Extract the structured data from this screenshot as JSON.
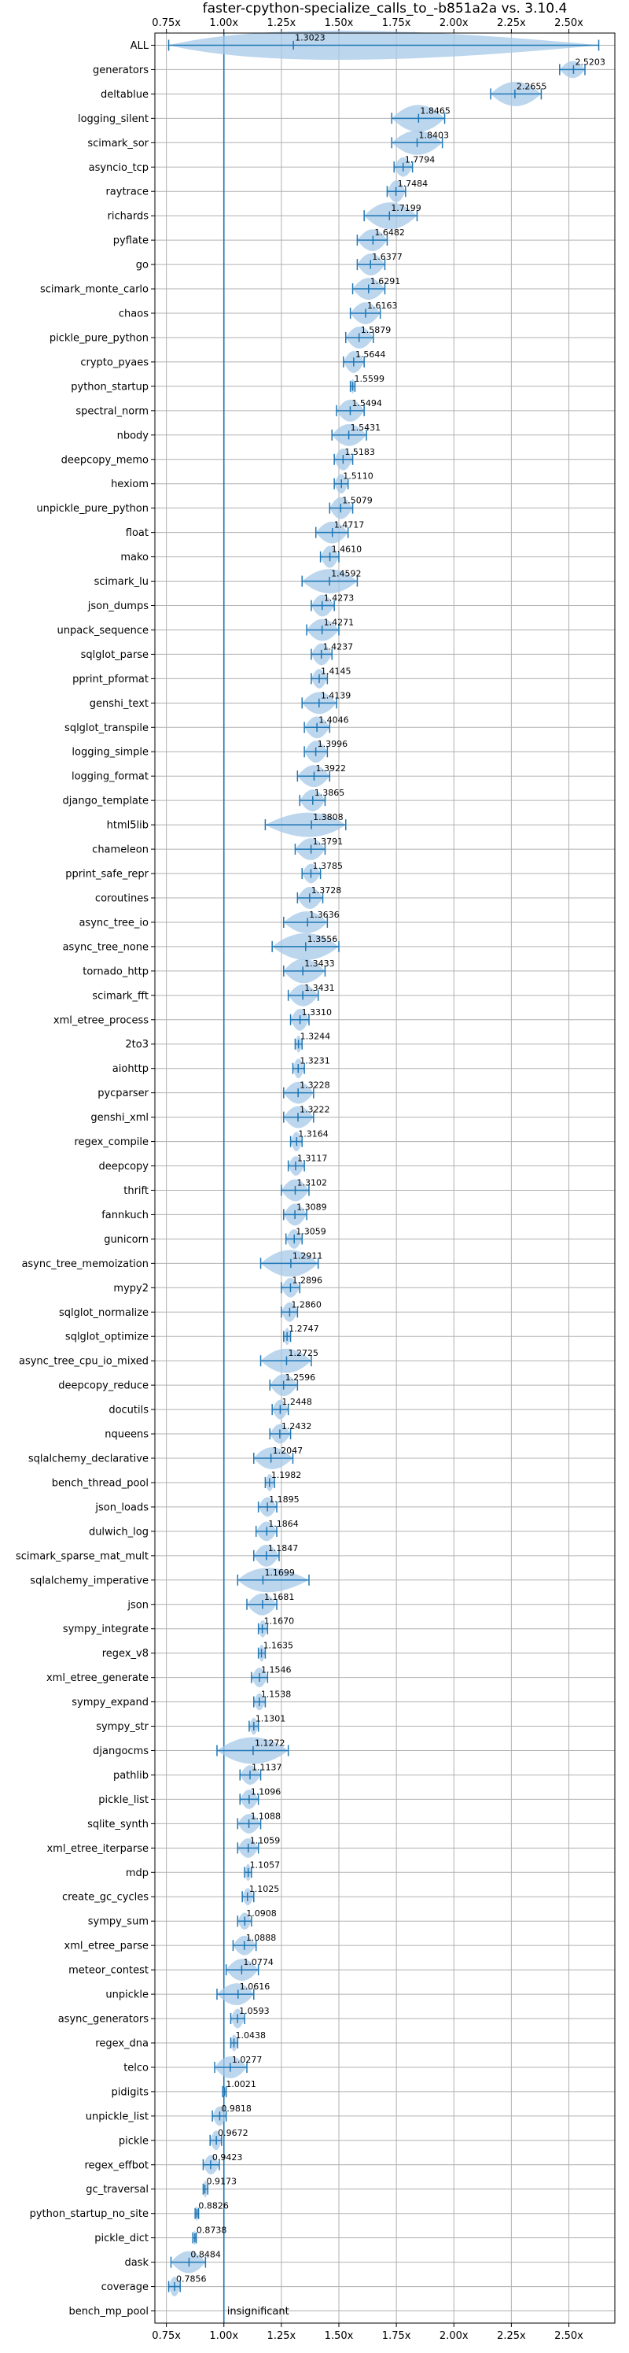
{
  "chart_data": {
    "type": "violin",
    "title": "faster-cpython-specialize_calls_to_-b851a2a vs. 3.10.4",
    "xlabel": "",
    "ylabel": "",
    "xlim": [
      0.7,
      2.7
    ],
    "xticks": [
      0.75,
      1.0,
      1.25,
      1.5,
      1.75,
      2.0,
      2.25,
      2.5
    ],
    "xtick_labels": [
      "0.75x",
      "1.00x",
      "1.25x",
      "1.50x",
      "1.75x",
      "2.00x",
      "2.25x",
      "2.50x"
    ],
    "reference_line": 1.0,
    "grid": true,
    "color": "#1f77b4",
    "fill_color": "#a6c8e8",
    "benchmarks": [
      {
        "name": "ALL",
        "value": 1.3023,
        "label": "1.3023",
        "lo": 0.76,
        "hi": 2.63,
        "width": 0.6
      },
      {
        "name": "generators",
        "value": 2.5203,
        "label": "2.5203",
        "lo": 2.46,
        "hi": 2.57,
        "width": 0.35
      },
      {
        "name": "deltablue",
        "value": 2.2655,
        "label": "2.2655",
        "lo": 2.16,
        "hi": 2.38,
        "width": 0.5
      },
      {
        "name": "logging_silent",
        "value": 1.8465,
        "label": "1.8465",
        "lo": 1.73,
        "hi": 1.96,
        "width": 0.55
      },
      {
        "name": "scimark_sor",
        "value": 1.8403,
        "label": "1.8403",
        "lo": 1.73,
        "hi": 1.95,
        "width": 0.5
      },
      {
        "name": "asyncio_tcp",
        "value": 1.7794,
        "label": "1.7794",
        "lo": 1.74,
        "hi": 1.82,
        "width": 0.4
      },
      {
        "name": "raytrace",
        "value": 1.7484,
        "label": "1.7484",
        "lo": 1.71,
        "hi": 1.79,
        "width": 0.45
      },
      {
        "name": "richards",
        "value": 1.7199,
        "label": "1.7199",
        "lo": 1.61,
        "hi": 1.84,
        "width": 0.55
      },
      {
        "name": "pyflate",
        "value": 1.6482,
        "label": "1.6482",
        "lo": 1.58,
        "hi": 1.71,
        "width": 0.45
      },
      {
        "name": "go",
        "value": 1.6377,
        "label": "1.6377",
        "lo": 1.58,
        "hi": 1.7,
        "width": 0.45
      },
      {
        "name": "scimark_monte_carlo",
        "value": 1.6291,
        "label": "1.6291",
        "lo": 1.56,
        "hi": 1.7,
        "width": 0.45
      },
      {
        "name": "chaos",
        "value": 1.6163,
        "label": "1.6163",
        "lo": 1.55,
        "hi": 1.68,
        "width": 0.45
      },
      {
        "name": "pickle_pure_python",
        "value": 1.5879,
        "label": "1.5879",
        "lo": 1.53,
        "hi": 1.65,
        "width": 0.45
      },
      {
        "name": "crypto_pyaes",
        "value": 1.5644,
        "label": "1.5644",
        "lo": 1.52,
        "hi": 1.61,
        "width": 0.45
      },
      {
        "name": "python_startup",
        "value": 1.5599,
        "label": "1.5599",
        "lo": 1.55,
        "hi": 1.57,
        "width": 0.3
      },
      {
        "name": "spectral_norm",
        "value": 1.5494,
        "label": "1.5494",
        "lo": 1.49,
        "hi": 1.61,
        "width": 0.45
      },
      {
        "name": "nbody",
        "value": 1.5431,
        "label": "1.5431",
        "lo": 1.47,
        "hi": 1.62,
        "width": 0.45
      },
      {
        "name": "deepcopy_memo",
        "value": 1.5183,
        "label": "1.5183",
        "lo": 1.48,
        "hi": 1.56,
        "width": 0.45
      },
      {
        "name": "hexiom",
        "value": 1.511,
        "label": "1.5110",
        "lo": 1.48,
        "hi": 1.54,
        "width": 0.4
      },
      {
        "name": "unpickle_pure_python",
        "value": 1.5079,
        "label": "1.5079",
        "lo": 1.46,
        "hi": 1.56,
        "width": 0.45
      },
      {
        "name": "float",
        "value": 1.4717,
        "label": "1.4717",
        "lo": 1.4,
        "hi": 1.54,
        "width": 0.45
      },
      {
        "name": "mako",
        "value": 1.461,
        "label": "1.4610",
        "lo": 1.42,
        "hi": 1.5,
        "width": 0.45
      },
      {
        "name": "scimark_lu",
        "value": 1.4592,
        "label": "1.4592",
        "lo": 1.34,
        "hi": 1.58,
        "width": 0.5
      },
      {
        "name": "json_dumps",
        "value": 1.4273,
        "label": "1.4273",
        "lo": 1.38,
        "hi": 1.48,
        "width": 0.45
      },
      {
        "name": "unpack_sequence",
        "value": 1.4271,
        "label": "1.4271",
        "lo": 1.36,
        "hi": 1.5,
        "width": 0.45
      },
      {
        "name": "sqlglot_parse",
        "value": 1.4237,
        "label": "1.4237",
        "lo": 1.38,
        "hi": 1.47,
        "width": 0.45
      },
      {
        "name": "pprint_pformat",
        "value": 1.4145,
        "label": "1.4145",
        "lo": 1.38,
        "hi": 1.45,
        "width": 0.4
      },
      {
        "name": "genshi_text",
        "value": 1.4139,
        "label": "1.4139",
        "lo": 1.34,
        "hi": 1.49,
        "width": 0.45
      },
      {
        "name": "sqlglot_transpile",
        "value": 1.4046,
        "label": "1.4046",
        "lo": 1.35,
        "hi": 1.46,
        "width": 0.45
      },
      {
        "name": "logging_simple",
        "value": 1.3996,
        "label": "1.3996",
        "lo": 1.35,
        "hi": 1.45,
        "width": 0.45
      },
      {
        "name": "logging_format",
        "value": 1.3922,
        "label": "1.3922",
        "lo": 1.32,
        "hi": 1.46,
        "width": 0.45
      },
      {
        "name": "django_template",
        "value": 1.3865,
        "label": "1.3865",
        "lo": 1.33,
        "hi": 1.44,
        "width": 0.45
      },
      {
        "name": "html5lib",
        "value": 1.3808,
        "label": "1.3808",
        "lo": 1.18,
        "hi": 1.53,
        "width": 0.5
      },
      {
        "name": "chameleon",
        "value": 1.3791,
        "label": "1.3791",
        "lo": 1.31,
        "hi": 1.44,
        "width": 0.45
      },
      {
        "name": "pprint_safe_repr",
        "value": 1.3785,
        "label": "1.3785",
        "lo": 1.34,
        "hi": 1.42,
        "width": 0.4
      },
      {
        "name": "coroutines",
        "value": 1.3728,
        "label": "1.3728",
        "lo": 1.32,
        "hi": 1.43,
        "width": 0.45
      },
      {
        "name": "async_tree_io",
        "value": 1.3636,
        "label": "1.3636",
        "lo": 1.26,
        "hi": 1.45,
        "width": 0.45
      },
      {
        "name": "async_tree_none",
        "value": 1.3556,
        "label": "1.3556",
        "lo": 1.21,
        "hi": 1.5,
        "width": 0.55
      },
      {
        "name": "tornado_http",
        "value": 1.3433,
        "label": "1.3433",
        "lo": 1.26,
        "hi": 1.44,
        "width": 0.5
      },
      {
        "name": "scimark_fft",
        "value": 1.3431,
        "label": "1.3431",
        "lo": 1.28,
        "hi": 1.41,
        "width": 0.45
      },
      {
        "name": "xml_etree_process",
        "value": 1.331,
        "label": "1.3310",
        "lo": 1.29,
        "hi": 1.37,
        "width": 0.45
      },
      {
        "name": "2to3",
        "value": 1.3244,
        "label": "1.3244",
        "lo": 1.31,
        "hi": 1.34,
        "width": 0.35
      },
      {
        "name": "aiohttp",
        "value": 1.3231,
        "label": "1.3231",
        "lo": 1.3,
        "hi": 1.35,
        "width": 0.4
      },
      {
        "name": "pycparser",
        "value": 1.3228,
        "label": "1.3228",
        "lo": 1.26,
        "hi": 1.39,
        "width": 0.45
      },
      {
        "name": "genshi_xml",
        "value": 1.3222,
        "label": "1.3222",
        "lo": 1.26,
        "hi": 1.39,
        "width": 0.45
      },
      {
        "name": "regex_compile",
        "value": 1.3164,
        "label": "1.3164",
        "lo": 1.29,
        "hi": 1.34,
        "width": 0.4
      },
      {
        "name": "deepcopy",
        "value": 1.3117,
        "label": "1.3117",
        "lo": 1.28,
        "hi": 1.35,
        "width": 0.4
      },
      {
        "name": "thrift",
        "value": 1.3102,
        "label": "1.3102",
        "lo": 1.25,
        "hi": 1.37,
        "width": 0.45
      },
      {
        "name": "fannkuch",
        "value": 1.3089,
        "label": "1.3089",
        "lo": 1.26,
        "hi": 1.36,
        "width": 0.45
      },
      {
        "name": "gunicorn",
        "value": 1.3059,
        "label": "1.3059",
        "lo": 1.27,
        "hi": 1.34,
        "width": 0.4
      },
      {
        "name": "async_tree_memoization",
        "value": 1.2911,
        "label": "1.2911",
        "lo": 1.16,
        "hi": 1.41,
        "width": 0.55
      },
      {
        "name": "mypy2",
        "value": 1.2896,
        "label": "1.2896",
        "lo": 1.25,
        "hi": 1.33,
        "width": 0.4
      },
      {
        "name": "sqlglot_normalize",
        "value": 1.286,
        "label": "1.2860",
        "lo": 1.25,
        "hi": 1.32,
        "width": 0.4
      },
      {
        "name": "sqlglot_optimize",
        "value": 1.2747,
        "label": "1.2747",
        "lo": 1.26,
        "hi": 1.29,
        "width": 0.35
      },
      {
        "name": "async_tree_cpu_io_mixed",
        "value": 1.2725,
        "label": "1.2725",
        "lo": 1.16,
        "hi": 1.38,
        "width": 0.5
      },
      {
        "name": "deepcopy_reduce",
        "value": 1.2596,
        "label": "1.2596",
        "lo": 1.2,
        "hi": 1.32,
        "width": 0.45
      },
      {
        "name": "docutils",
        "value": 1.2448,
        "label": "1.2448",
        "lo": 1.21,
        "hi": 1.28,
        "width": 0.4
      },
      {
        "name": "nqueens",
        "value": 1.2432,
        "label": "1.2432",
        "lo": 1.2,
        "hi": 1.29,
        "width": 0.4
      },
      {
        "name": "sqlalchemy_declarative",
        "value": 1.2047,
        "label": "1.2047",
        "lo": 1.13,
        "hi": 1.3,
        "width": 0.45
      },
      {
        "name": "bench_thread_pool",
        "value": 1.1982,
        "label": "1.1982",
        "lo": 1.18,
        "hi": 1.22,
        "width": 0.35
      },
      {
        "name": "json_loads",
        "value": 1.1895,
        "label": "1.1895",
        "lo": 1.15,
        "hi": 1.23,
        "width": 0.4
      },
      {
        "name": "dulwich_log",
        "value": 1.1864,
        "label": "1.1864",
        "lo": 1.14,
        "hi": 1.23,
        "width": 0.4
      },
      {
        "name": "scimark_sparse_mat_mult",
        "value": 1.1847,
        "label": "1.1847",
        "lo": 1.13,
        "hi": 1.24,
        "width": 0.45
      },
      {
        "name": "sqlalchemy_imperative",
        "value": 1.1699,
        "label": "1.1699",
        "lo": 1.06,
        "hi": 1.37,
        "width": 0.5
      },
      {
        "name": "json",
        "value": 1.1681,
        "label": "1.1681",
        "lo": 1.1,
        "hi": 1.23,
        "width": 0.45
      },
      {
        "name": "sympy_integrate",
        "value": 1.167,
        "label": "1.1670",
        "lo": 1.15,
        "hi": 1.19,
        "width": 0.35
      },
      {
        "name": "regex_v8",
        "value": 1.1635,
        "label": "1.1635",
        "lo": 1.15,
        "hi": 1.18,
        "width": 0.35
      },
      {
        "name": "xml_etree_generate",
        "value": 1.1546,
        "label": "1.1546",
        "lo": 1.12,
        "hi": 1.19,
        "width": 0.4
      },
      {
        "name": "sympy_expand",
        "value": 1.1538,
        "label": "1.1538",
        "lo": 1.13,
        "hi": 1.18,
        "width": 0.35
      },
      {
        "name": "sympy_str",
        "value": 1.1301,
        "label": "1.1301",
        "lo": 1.11,
        "hi": 1.15,
        "width": 0.35
      },
      {
        "name": "djangocms",
        "value": 1.1272,
        "label": "1.1272",
        "lo": 0.97,
        "hi": 1.28,
        "width": 0.55
      },
      {
        "name": "pathlib",
        "value": 1.1137,
        "label": "1.1137",
        "lo": 1.07,
        "hi": 1.16,
        "width": 0.4
      },
      {
        "name": "pickle_list",
        "value": 1.1096,
        "label": "1.1096",
        "lo": 1.07,
        "hi": 1.15,
        "width": 0.4
      },
      {
        "name": "sqlite_synth",
        "value": 1.1088,
        "label": "1.1088",
        "lo": 1.06,
        "hi": 1.16,
        "width": 0.4
      },
      {
        "name": "xml_etree_iterparse",
        "value": 1.1059,
        "label": "1.1059",
        "lo": 1.06,
        "hi": 1.15,
        "width": 0.4
      },
      {
        "name": "mdp",
        "value": 1.1057,
        "label": "1.1057",
        "lo": 1.09,
        "hi": 1.12,
        "width": 0.35
      },
      {
        "name": "create_gc_cycles",
        "value": 1.1025,
        "label": "1.1025",
        "lo": 1.08,
        "hi": 1.13,
        "width": 0.35
      },
      {
        "name": "sympy_sum",
        "value": 1.0908,
        "label": "1.0908",
        "lo": 1.06,
        "hi": 1.12,
        "width": 0.35
      },
      {
        "name": "xml_etree_parse",
        "value": 1.0888,
        "label": "1.0888",
        "lo": 1.04,
        "hi": 1.14,
        "width": 0.4
      },
      {
        "name": "meteor_contest",
        "value": 1.0774,
        "label": "1.0774",
        "lo": 1.01,
        "hi": 1.15,
        "width": 0.45
      },
      {
        "name": "unpickle",
        "value": 1.0616,
        "label": "1.0616",
        "lo": 0.97,
        "hi": 1.13,
        "width": 0.45
      },
      {
        "name": "async_generators",
        "value": 1.0593,
        "label": "1.0593",
        "lo": 1.03,
        "hi": 1.09,
        "width": 0.4
      },
      {
        "name": "regex_dna",
        "value": 1.0438,
        "label": "1.0438",
        "lo": 1.03,
        "hi": 1.06,
        "width": 0.35
      },
      {
        "name": "telco",
        "value": 1.0277,
        "label": "1.0277",
        "lo": 0.96,
        "hi": 1.1,
        "width": 0.45
      },
      {
        "name": "pidigits",
        "value": 1.0021,
        "label": "1.0021",
        "lo": 0.995,
        "hi": 1.01,
        "width": 0.2
      },
      {
        "name": "unpickle_list",
        "value": 0.9818,
        "label": "0.9818",
        "lo": 0.95,
        "hi": 1.01,
        "width": 0.4
      },
      {
        "name": "pickle",
        "value": 0.9672,
        "label": "0.9672",
        "lo": 0.94,
        "hi": 0.99,
        "width": 0.4
      },
      {
        "name": "regex_effbot",
        "value": 0.9423,
        "label": "0.9423",
        "lo": 0.91,
        "hi": 0.98,
        "width": 0.4
      },
      {
        "name": "gc_traversal",
        "value": 0.9173,
        "label": "0.9173",
        "lo": 0.91,
        "hi": 0.93,
        "width": 0.35
      },
      {
        "name": "python_startup_no_site",
        "value": 0.8826,
        "label": "0.8826",
        "lo": 0.875,
        "hi": 0.89,
        "width": 0.3
      },
      {
        "name": "pickle_dict",
        "value": 0.8738,
        "label": "0.8738",
        "lo": 0.865,
        "hi": 0.88,
        "width": 0.3
      },
      {
        "name": "dask",
        "value": 0.8484,
        "label": "0.8484",
        "lo": 0.77,
        "hi": 0.92,
        "width": 0.45
      },
      {
        "name": "coverage",
        "value": 0.7856,
        "label": "0.7856",
        "lo": 0.76,
        "hi": 0.81,
        "width": 0.4
      },
      {
        "name": "bench_mp_pool",
        "value": null,
        "label": "insignificant",
        "lo": null,
        "hi": null,
        "width": 0
      }
    ]
  }
}
